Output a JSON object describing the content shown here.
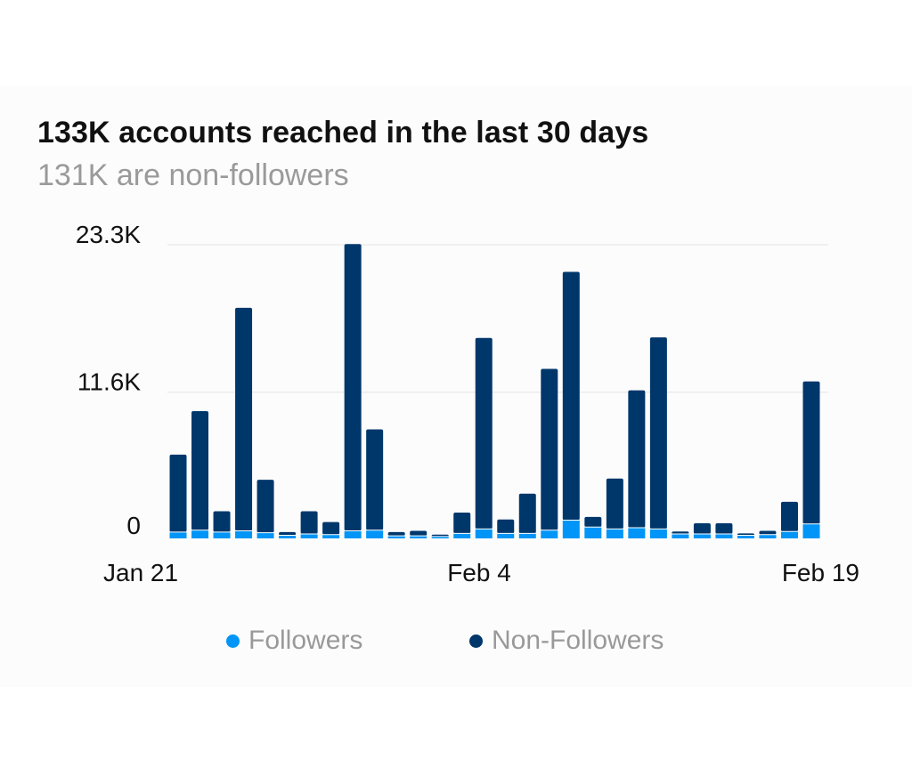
{
  "header": {
    "title": "133K accounts reached in the last 30 days",
    "subtitle": "131K are non-followers"
  },
  "legend": {
    "followers_label": "Followers",
    "non_followers_label": "Non-Followers"
  },
  "colors": {
    "followers": "#0095f6",
    "non_followers": "#00376b",
    "gridline": "#e3e3e3",
    "axis_text": "#111111",
    "legend_text": "#999999"
  },
  "chart_data": {
    "type": "bar",
    "stacked": true,
    "title": "133K accounts reached in the last 30 days",
    "subtitle": "131K are non-followers",
    "xlabel": "",
    "ylabel": "",
    "ylim": [
      0,
      23300
    ],
    "y_ticks": [
      {
        "value": 0,
        "label": "0"
      },
      {
        "value": 11600,
        "label": "11.6K"
      },
      {
        "value": 23300,
        "label": "23.3K"
      }
    ],
    "x_tick_labels": [
      {
        "index": 0,
        "label": "Jan 21"
      },
      {
        "index": 14,
        "label": "Feb 4"
      },
      {
        "index": 29,
        "label": "Feb 19"
      }
    ],
    "grid": true,
    "legend_position": "bottom",
    "series": [
      {
        "name": "Followers",
        "color": "#0095f6",
        "values": [
          500,
          650,
          500,
          600,
          450,
          250,
          350,
          300,
          600,
          650,
          200,
          200,
          150,
          400,
          750,
          400,
          400,
          650,
          1450,
          900,
          750,
          850,
          750,
          350,
          350,
          350,
          250,
          300,
          550,
          1150
        ]
      },
      {
        "name": "Non-Followers",
        "color": "#00376b",
        "values": [
          6150,
          9450,
          1650,
          17700,
          4200,
          250,
          1800,
          1000,
          22750,
          8000,
          300,
          400,
          150,
          1650,
          15150,
          1100,
          3150,
          12800,
          19700,
          800,
          4000,
          10900,
          15200,
          200,
          850,
          850,
          150,
          300,
          2350,
          11300
        ]
      }
    ]
  }
}
